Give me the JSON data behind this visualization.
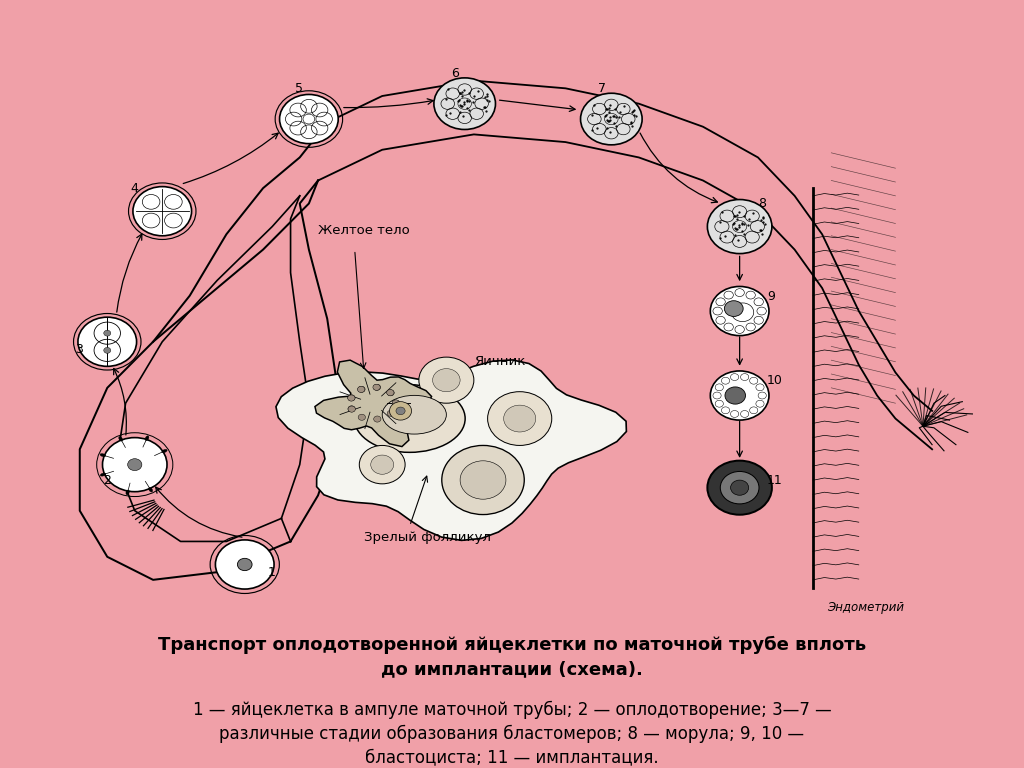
{
  "bg_color": "#f0a0a8",
  "panel_bg": "#ffffff",
  "title_bold": "Транспорт оплодотворенной яйцеклетки по маточной трубе вплоть\nдо имплантации (схема).",
  "caption_normal": "1 — яйцеклетка в ампуле маточной трубы; 2 — оплодотворение; 3—7 —\nразличные стадии образования бластомеров; 8 — морула; 9, 10 —\nбластоциста; 11 — имплантация.",
  "title_fontsize": 13,
  "caption_fontsize": 12,
  "endometry_label": "Эндометрий",
  "zheltoe_label": "Желтое тело",
  "yachnik_label": "Яичник",
  "zreliy_label": "Зрелый фолликул"
}
